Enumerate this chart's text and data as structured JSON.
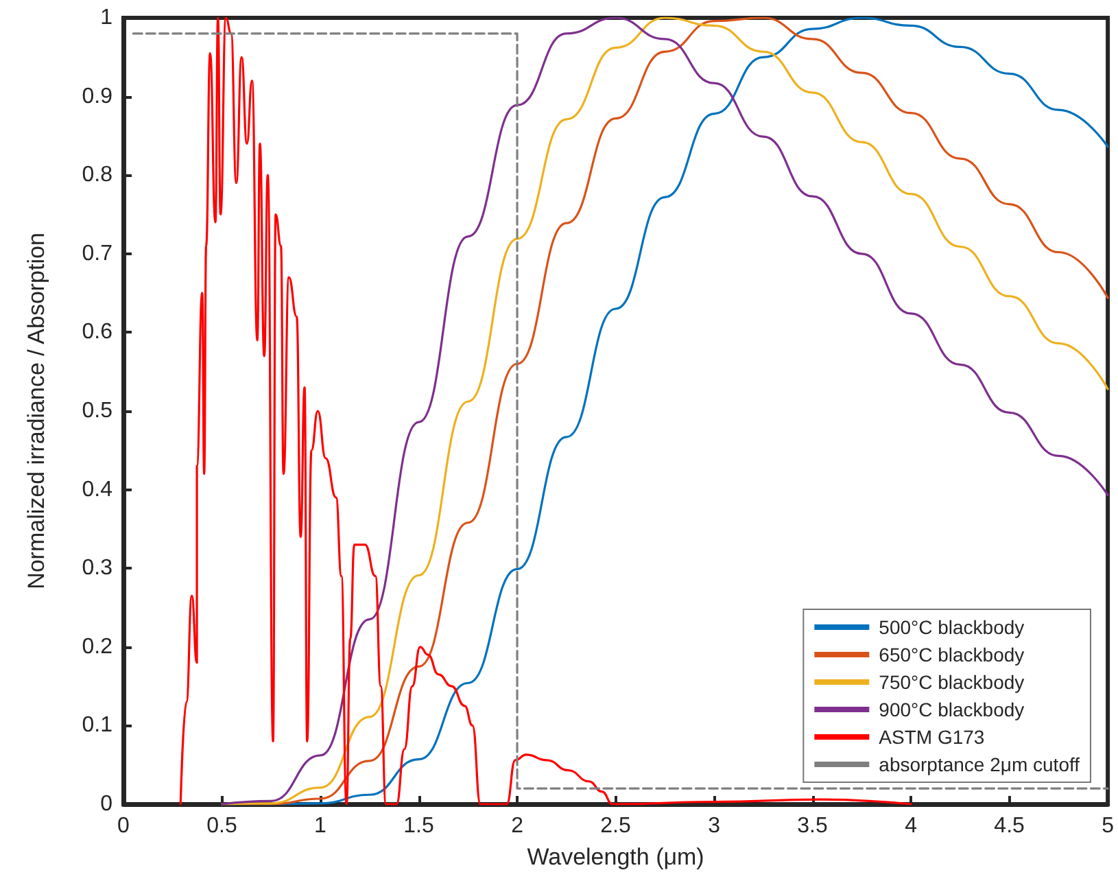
{
  "chart_data": {
    "type": "line",
    "xlabel": "Wavelength (μm)",
    "ylabel": "Normalized irradiance / Absorption",
    "xlim": [
      0,
      5
    ],
    "ylim": [
      0,
      1
    ],
    "xticks": [
      0,
      0.5,
      1,
      1.5,
      2,
      2.5,
      3,
      3.5,
      4,
      4.5,
      5
    ],
    "yticks": [
      0,
      0.1,
      0.2,
      0.3,
      0.4,
      0.5,
      0.6,
      0.7,
      0.8,
      0.9,
      1
    ],
    "grid": false,
    "legend": "bottom right",
    "marker": "none",
    "series": [
      {
        "name": "500°C blackbody",
        "color": "#0072bd",
        "x": [
          0.5,
          0.75,
          1,
          1.25,
          1.5,
          1.75,
          2,
          2.25,
          2.5,
          2.75,
          3,
          3.25,
          3.5,
          3.75,
          4,
          4.25,
          4.5,
          4.75,
          5
        ],
        "values": [
          0,
          0,
          0.001,
          0.012,
          0.057,
          0.154,
          0.299,
          0.467,
          0.63,
          0.772,
          0.878,
          0.95,
          0.986,
          1,
          0.99,
          0.963,
          0.929,
          0.883,
          0.836
        ]
      },
      {
        "name": "650°C blackbody",
        "color": "#d95319",
        "x": [
          0.5,
          0.75,
          1,
          1.25,
          1.5,
          1.75,
          2,
          2.25,
          2.5,
          2.75,
          3,
          3.25,
          3.5,
          3.75,
          4,
          4.25,
          4.5,
          4.75,
          5
        ],
        "values": [
          0,
          0,
          0.007,
          0.055,
          0.175,
          0.358,
          0.56,
          0.739,
          0.872,
          0.957,
          0.996,
          1,
          0.973,
          0.93,
          0.879,
          0.821,
          0.763,
          0.702,
          0.644
        ]
      },
      {
        "name": "750°C blackbody",
        "color": "#edb120",
        "x": [
          0.5,
          0.75,
          1,
          1.25,
          1.5,
          1.75,
          2,
          2.25,
          2.5,
          2.75,
          3,
          3.25,
          3.5,
          3.75,
          4,
          4.25,
          4.5,
          4.75,
          5
        ],
        "values": [
          0,
          0.001,
          0.021,
          0.111,
          0.291,
          0.512,
          0.719,
          0.871,
          0.962,
          1,
          0.99,
          0.957,
          0.905,
          0.842,
          0.776,
          0.709,
          0.646,
          0.586,
          0.528
        ]
      },
      {
        "name": "900°C blackbody",
        "color": "#7e2f8e",
        "x": [
          0.5,
          0.75,
          1,
          1.25,
          1.5,
          1.75,
          2,
          2.25,
          2.5,
          2.75,
          3,
          3.25,
          3.5,
          3.75,
          4,
          4.25,
          4.5,
          4.75,
          5
        ],
        "values": [
          0,
          0.004,
          0.062,
          0.235,
          0.486,
          0.722,
          0.889,
          0.98,
          1,
          0.973,
          0.917,
          0.849,
          0.773,
          0.7,
          0.624,
          0.559,
          0.498,
          0.443,
          0.393
        ]
      },
      {
        "name": "ASTM G173",
        "color": "#ff0000",
        "x": [
          0.29,
          0.32,
          0.347,
          0.373,
          0.373,
          0.4,
          0.41,
          0.42,
          0.44,
          0.467,
          0.48,
          0.493,
          0.52,
          0.547,
          0.573,
          0.6,
          0.627,
          0.653,
          0.68,
          0.693,
          0.715,
          0.733,
          0.76,
          0.773,
          0.8,
          0.813,
          0.84,
          0.88,
          0.9,
          0.92,
          0.933,
          0.955,
          0.987,
          1.027,
          1.08,
          1.107,
          1.133,
          1.152,
          1.173,
          1.227,
          1.28,
          1.307,
          1.333,
          1.387,
          1.427,
          1.467,
          1.507,
          1.547,
          1.6,
          1.667,
          1.733,
          1.773,
          1.813,
          1.947,
          1.99,
          2.046,
          2.15,
          2.26,
          2.365,
          2.43,
          2.485,
          3.0,
          3.54,
          4.0
        ],
        "values": [
          0,
          0.13,
          0.265,
          0.18,
          0.43,
          0.65,
          0.42,
          0.71,
          0.955,
          0.74,
          1,
          0.75,
          1,
          0.98,
          0.79,
          0.95,
          0.84,
          0.92,
          0.59,
          0.84,
          0.57,
          0.8,
          0.08,
          0.75,
          0.71,
          0.42,
          0.67,
          0.62,
          0.34,
          0.53,
          0.08,
          0.45,
          0.5,
          0.44,
          0.39,
          0.29,
          0,
          0.21,
          0.33,
          0.33,
          0.29,
          0.15,
          0,
          0,
          0.07,
          0.15,
          0.2,
          0.19,
          0.165,
          0.15,
          0.125,
          0.1,
          0,
          0,
          0.056,
          0.063,
          0.056,
          0.043,
          0.029,
          0.016,
          0,
          0.003,
          0.006,
          0
        ]
      },
      {
        "name": "absorptance 2μm cutoff",
        "color": "#7f7f7f",
        "line_style": "dashed",
        "x": [
          0.05,
          2,
          2,
          5
        ],
        "values": [
          0.98,
          0.98,
          0.02,
          0.02
        ]
      }
    ]
  }
}
